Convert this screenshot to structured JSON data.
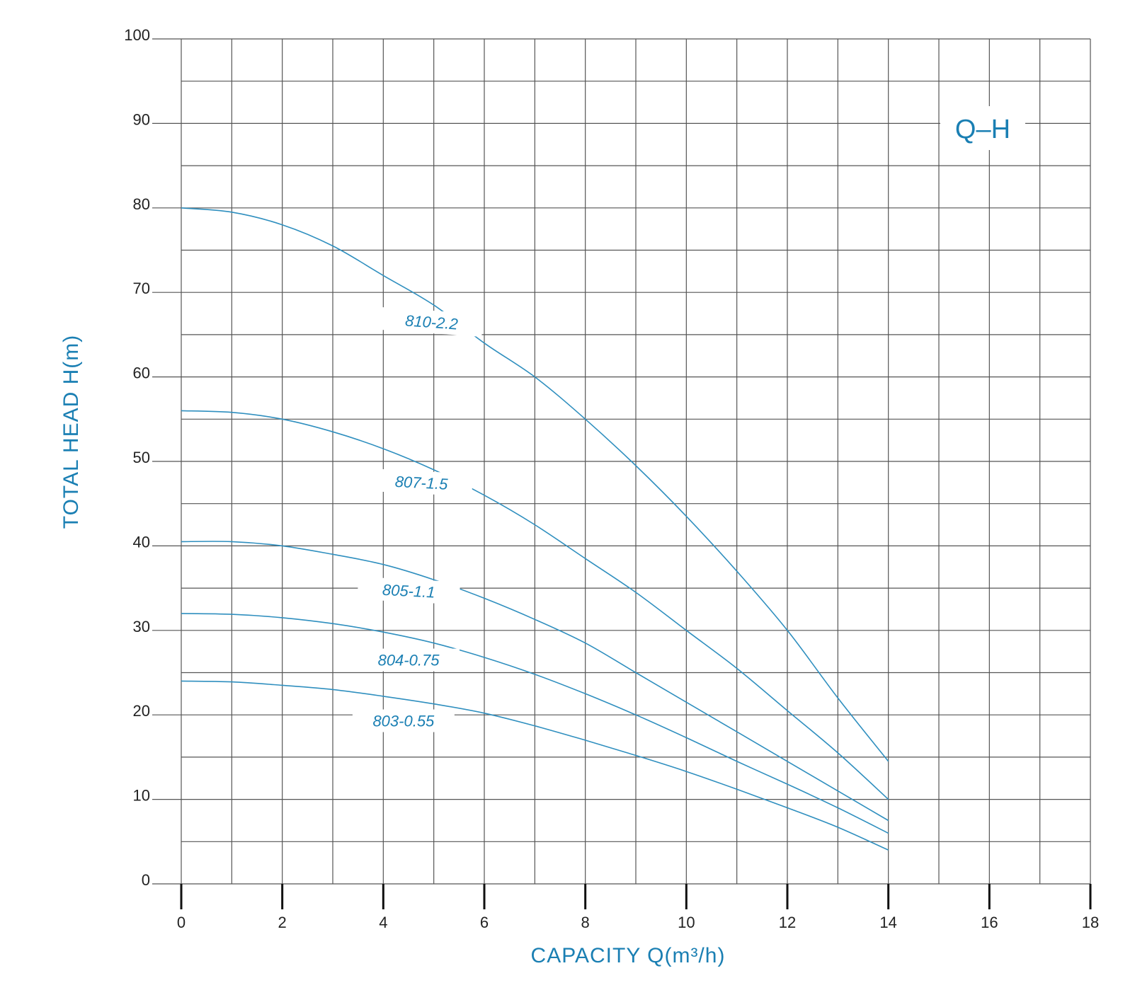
{
  "chart_data": {
    "type": "line",
    "xlabel": "CAPACITY Q(m³/h)",
    "ylabel": "TOTAL HEAD H(m)",
    "legend": "Q–H",
    "legend_placement": "top-right",
    "grid": true,
    "xlim": [
      0,
      18
    ],
    "ylim": [
      0,
      100
    ],
    "x_ticks": [
      "0",
      "2",
      "4",
      "6",
      "8",
      "10",
      "12",
      "14",
      "16",
      "18"
    ],
    "y_ticks": [
      "0",
      "10",
      "20",
      "30",
      "40",
      "50",
      "60",
      "70",
      "80",
      "90",
      "100"
    ],
    "series": [
      {
        "name": "810-2.2",
        "x": [
          0,
          1,
          2,
          3,
          4,
          5,
          6,
          7,
          8,
          9,
          10,
          11,
          12,
          13,
          14
        ],
        "y": [
          80,
          79.5,
          78,
          75.5,
          72,
          68.5,
          64,
          60,
          55,
          49.5,
          43.5,
          37,
          30,
          22,
          14.5
        ]
      },
      {
        "name": "807-1.5",
        "x": [
          0,
          1,
          2,
          3,
          4,
          5,
          6,
          7,
          8,
          9,
          10,
          11,
          12,
          13,
          14
        ],
        "y": [
          56,
          55.8,
          55,
          53.5,
          51.5,
          49,
          46,
          42.5,
          38.5,
          34.5,
          30,
          25.5,
          20.5,
          15.5,
          10
        ]
      },
      {
        "name": "805-1.1",
        "x": [
          0,
          1,
          2,
          3,
          4,
          5,
          6,
          7,
          8,
          9,
          10,
          11,
          12,
          13,
          14
        ],
        "y": [
          40.5,
          40.5,
          40,
          39,
          37.8,
          36,
          33.8,
          31.3,
          28.5,
          25,
          21.5,
          18,
          14.5,
          11,
          7.5
        ]
      },
      {
        "name": "804-0.75",
        "x": [
          0,
          1,
          2,
          3,
          4,
          5,
          6,
          7,
          8,
          9,
          10,
          11,
          12,
          13,
          14
        ],
        "y": [
          32,
          31.9,
          31.5,
          30.8,
          29.8,
          28.5,
          26.8,
          24.8,
          22.5,
          20,
          17.3,
          14.5,
          11.8,
          9,
          6
        ]
      },
      {
        "name": "803-0.55",
        "x": [
          0,
          1,
          2,
          3,
          4,
          5,
          6,
          7,
          8,
          9,
          10,
          11,
          12,
          13,
          14
        ],
        "y": [
          24,
          23.9,
          23.5,
          23,
          22.2,
          21.3,
          20.2,
          18.7,
          17,
          15.2,
          13.3,
          11.2,
          9,
          6.7,
          4
        ]
      }
    ]
  }
}
